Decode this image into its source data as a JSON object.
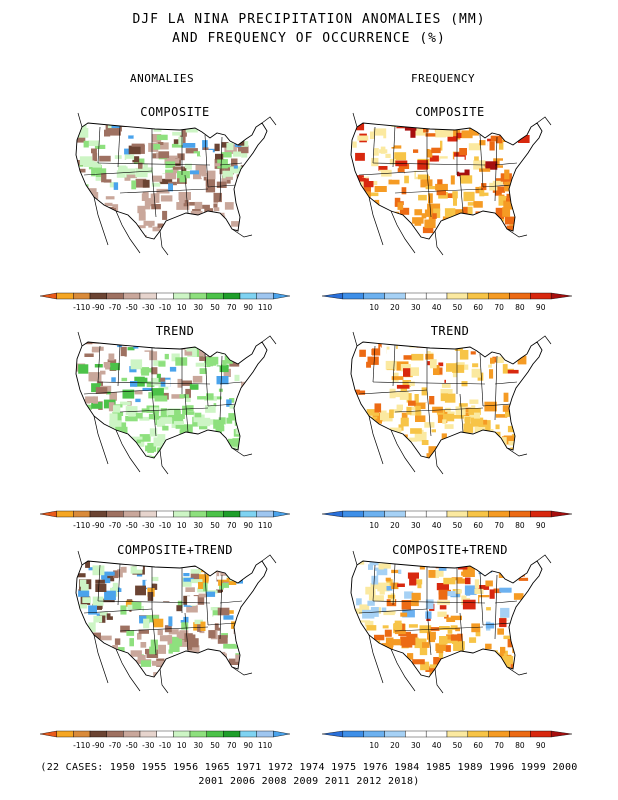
{
  "title": {
    "line1": "DJF LA NINA PRECIPITATION ANOMALIES (MM)",
    "line2": "AND FREQUENCY OF OCCURRENCE (%)"
  },
  "columns": {
    "anomalies": "ANOMALIES",
    "frequency": "FREQUENCY"
  },
  "rows": [
    {
      "label": "COMPOSITE"
    },
    {
      "label": "TREND"
    },
    {
      "label": "COMPOSITE+TREND"
    }
  ],
  "legends": {
    "anomaly": {
      "ticks": [
        "-110",
        "-90",
        "-70",
        "-50",
        "-30",
        "-10",
        "10",
        "30",
        "50",
        "70",
        "90",
        "110"
      ],
      "colors": [
        "#e8591a",
        "#f5a623",
        "#d98b3a",
        "#6b4433",
        "#9e7161",
        "#c9a79b",
        "#e6d4cd",
        "#ffffff",
        "#cdf5c5",
        "#8ee07e",
        "#4cc249",
        "#1f9e2a",
        "#7fd3f2",
        "#9fc6f0",
        "#4aa3ec"
      ]
    },
    "frequency": {
      "ticks": [
        "10",
        "20",
        "30",
        "40",
        "50",
        "60",
        "70",
        "80",
        "90"
      ],
      "colors": [
        "#2a6fd8",
        "#3e8fe8",
        "#6cb1f0",
        "#a6d1f5",
        "#ffffff",
        "#ffffff",
        "#fbe9a0",
        "#f7c447",
        "#f59b24",
        "#ec6a14",
        "#d8280f",
        "#a60e0e"
      ]
    }
  },
  "panel_colors": {
    "anom_composite": [
      "#9e7161",
      "#c9a79b",
      "#c9a79b",
      "#9e7161",
      "#8ee07e",
      "#cdf5c5",
      "#4aa3ec",
      "#6b4433",
      "#ffffff"
    ],
    "anom_trend": [
      "#8ee07e",
      "#cdf5c5",
      "#8ee07e",
      "#c9a79b",
      "#4cc249",
      "#9e7161",
      "#ffffff",
      "#ffffff",
      "#4aa3ec"
    ],
    "anom_both": [
      "#9e7161",
      "#c9a79b",
      "#8ee07e",
      "#cdf5c5",
      "#4aa3ec",
      "#6b4433",
      "#f5a623",
      "#ffffff",
      "#ffffff"
    ],
    "freq_composite": [
      "#f59b24",
      "#ec6a14",
      "#f7c447",
      "#d8280f",
      "#fbe9a0",
      "#ffffff",
      "#ffffff",
      "#f59b24",
      "#a60e0e"
    ],
    "freq_trend": [
      "#f7c447",
      "#fbe9a0",
      "#f59b24",
      "#ec6a14",
      "#ffffff",
      "#ffffff",
      "#d8280f",
      "#fbe9a0",
      "#f7c447"
    ],
    "freq_both": [
      "#f59b24",
      "#f7c447",
      "#ec6a14",
      "#a6d1f5",
      "#fbe9a0",
      "#ffffff",
      "#6cb1f0",
      "#d8280f",
      "#f59b24"
    ]
  },
  "footer": {
    "line1": "(22 CASES:  1950 1955 1956 1965 1971 1972 1974 1975 1976 1984 1985 1989 1996 1999 2000",
    "line2": "2001 2006 2008 2009 2011 2012 2018)"
  }
}
